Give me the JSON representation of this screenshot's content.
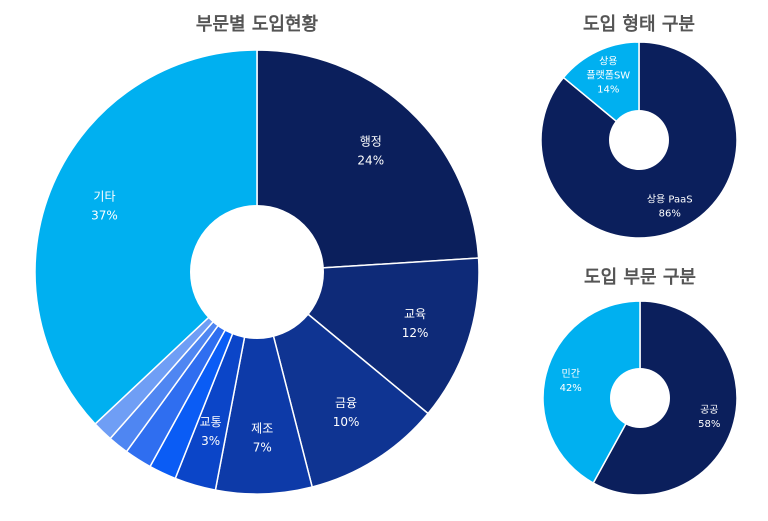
{
  "chart_data": [
    {
      "type": "pie",
      "title": "부문별 도입현황",
      "donut": true,
      "slices": [
        {
          "label": "행정",
          "value": 24,
          "text": "24%",
          "color": "#0b1f5c"
        },
        {
          "label": "교육",
          "value": 12,
          "text": "12%",
          "color": "#0e2a78"
        },
        {
          "label": "금융",
          "value": 10,
          "text": "10%",
          "color": "#0f3492"
        },
        {
          "label": "제조",
          "value": 7,
          "text": "7%",
          "color": "#0d3aa8"
        },
        {
          "label": "교통",
          "value": 3,
          "text": "3%",
          "color": "#0b45c8"
        },
        {
          "label": "",
          "value": 2,
          "text": "",
          "color": "#0a5cf5"
        },
        {
          "label": "",
          "value": 2,
          "text": "",
          "color": "#2f6ef0"
        },
        {
          "label": "",
          "value": 1.5,
          "text": "",
          "color": "#4f86f2"
        },
        {
          "label": "",
          "value": 1.5,
          "text": "",
          "color": "#6f9ef5"
        },
        {
          "label": "기타",
          "value": 37,
          "text": "37%",
          "color": "#00b0f0"
        }
      ]
    },
    {
      "type": "pie",
      "title": "도입 형태 구분",
      "donut": true,
      "slices": [
        {
          "label": "상용 PaaS",
          "value": 86,
          "text": "86%",
          "color": "#0b1f5c"
        },
        {
          "label": "상용 플랫폼SW",
          "value": 14,
          "text": "14%",
          "color": "#00b0f0"
        }
      ]
    },
    {
      "type": "pie",
      "title": "도입 부문 구분",
      "donut": true,
      "slices": [
        {
          "label": "공공",
          "value": 58,
          "text": "58%",
          "color": "#0b1f5c"
        },
        {
          "label": "민간",
          "value": 42,
          "text": "42%",
          "color": "#00b0f0"
        }
      ]
    }
  ]
}
